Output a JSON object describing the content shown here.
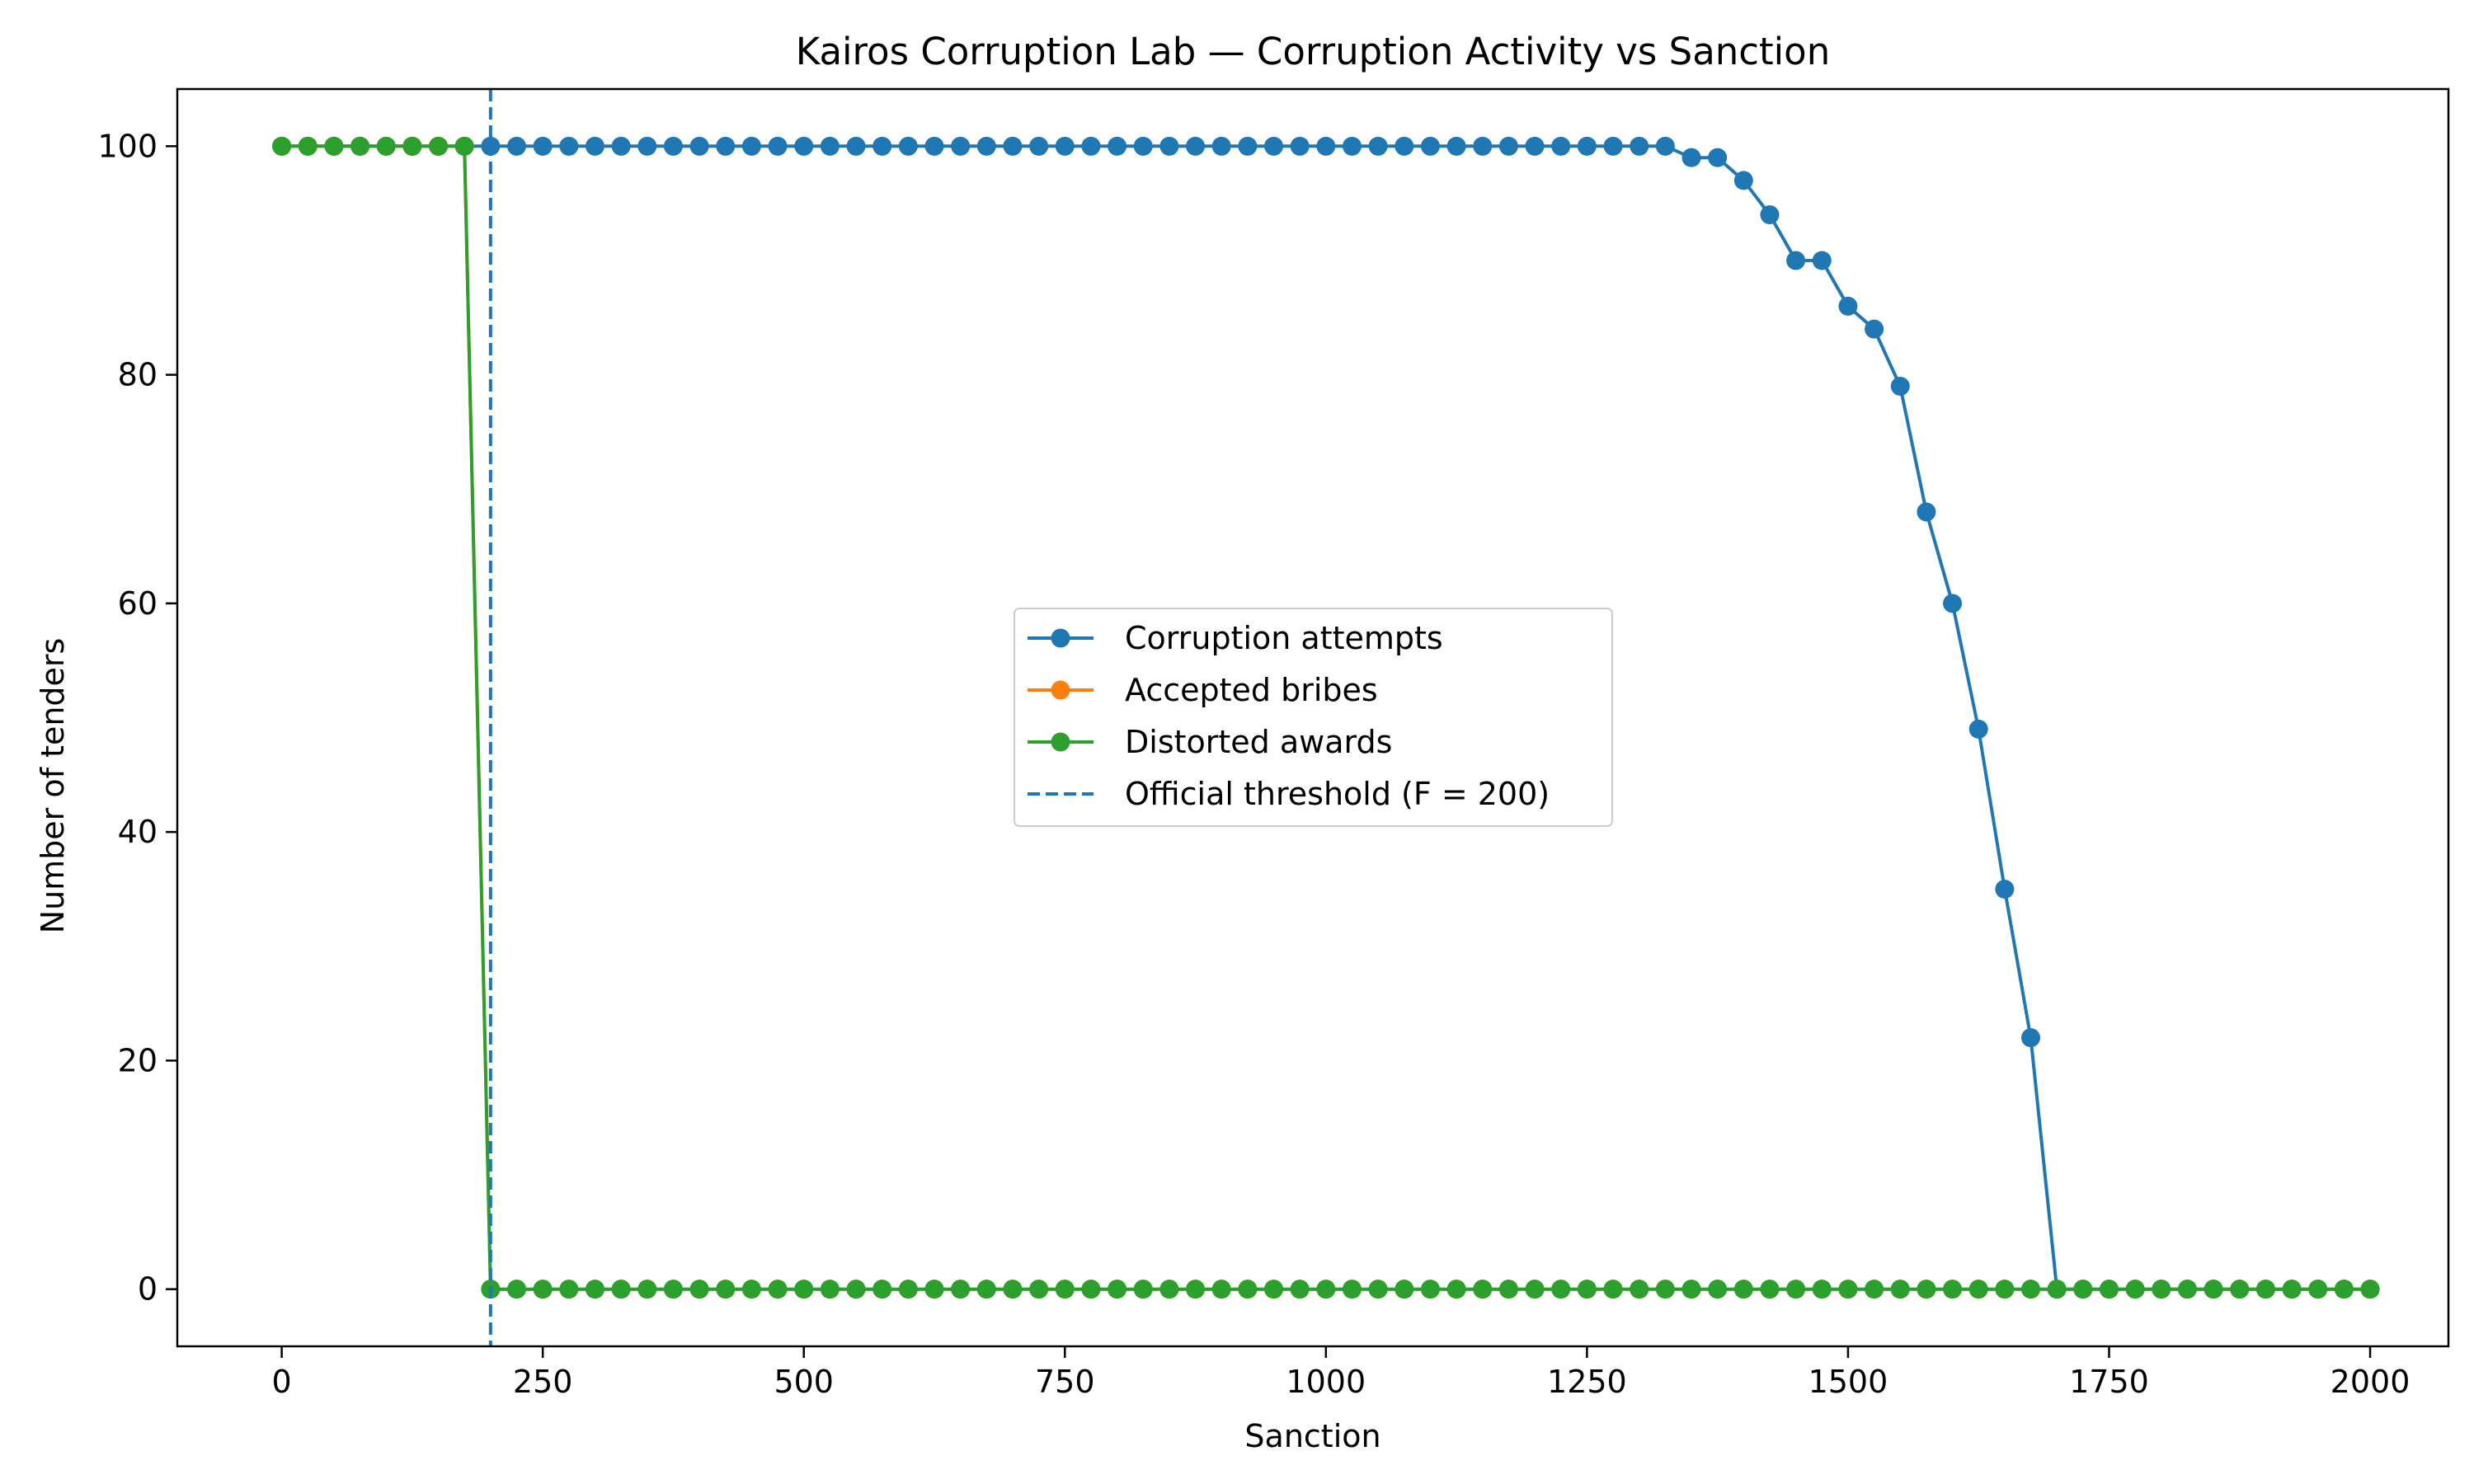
{
  "chart_data": {
    "type": "line",
    "title": "Kairos Corruption Lab — Corruption Activity vs Sanction",
    "xlabel": "Sanction",
    "ylabel": "Number of tenders",
    "xlim": [
      -100,
      2075
    ],
    "ylim": [
      -5,
      105
    ],
    "xticks": [
      0,
      250,
      500,
      750,
      1000,
      1250,
      1500,
      1750,
      2000
    ],
    "yticks": [
      0,
      20,
      40,
      60,
      80,
      100
    ],
    "grid": false,
    "legend_position": "center",
    "x": [
      0,
      25,
      50,
      75,
      100,
      125,
      150,
      175,
      200,
      225,
      250,
      275,
      300,
      325,
      350,
      375,
      400,
      425,
      450,
      475,
      500,
      525,
      550,
      575,
      600,
      625,
      650,
      675,
      700,
      725,
      750,
      775,
      800,
      825,
      850,
      875,
      900,
      925,
      950,
      975,
      1000,
      1025,
      1050,
      1075,
      1100,
      1125,
      1150,
      1175,
      1200,
      1225,
      1250,
      1275,
      1300,
      1325,
      1350,
      1375,
      1400,
      1425,
      1450,
      1475,
      1500,
      1525,
      1550,
      1575,
      1600,
      1625,
      1650,
      1675,
      1700,
      1725,
      1750,
      1775,
      1800,
      1825,
      1850,
      1875,
      1900,
      1925,
      1950,
      1975,
      2000
    ],
    "series": [
      {
        "name": "Corruption attempts",
        "color": "#1f77b4",
        "values": [
          100,
          100,
          100,
          100,
          100,
          100,
          100,
          100,
          100,
          100,
          100,
          100,
          100,
          100,
          100,
          100,
          100,
          100,
          100,
          100,
          100,
          100,
          100,
          100,
          100,
          100,
          100,
          100,
          100,
          100,
          100,
          100,
          100,
          100,
          100,
          100,
          100,
          100,
          100,
          100,
          100,
          100,
          100,
          100,
          100,
          100,
          100,
          100,
          100,
          100,
          100,
          100,
          100,
          100,
          99,
          99,
          97,
          94,
          90,
          90,
          86,
          84,
          79,
          68,
          60,
          49,
          35,
          22,
          0,
          0,
          0,
          0,
          0,
          0,
          0,
          0,
          0,
          0,
          0,
          0,
          0
        ]
      },
      {
        "name": "Accepted bribes",
        "color": "#ff7f0e",
        "values": [
          100,
          100,
          100,
          100,
          100,
          100,
          100,
          100,
          0,
          0,
          0,
          0,
          0,
          0,
          0,
          0,
          0,
          0,
          0,
          0,
          0,
          0,
          0,
          0,
          0,
          0,
          0,
          0,
          0,
          0,
          0,
          0,
          0,
          0,
          0,
          0,
          0,
          0,
          0,
          0,
          0,
          0,
          0,
          0,
          0,
          0,
          0,
          0,
          0,
          0,
          0,
          0,
          0,
          0,
          0,
          0,
          0,
          0,
          0,
          0,
          0,
          0,
          0,
          0,
          0,
          0,
          0,
          0,
          0,
          0,
          0,
          0,
          0,
          0,
          0,
          0,
          0,
          0,
          0,
          0,
          0
        ]
      },
      {
        "name": "Distorted awards",
        "color": "#2ca02c",
        "values": [
          100,
          100,
          100,
          100,
          100,
          100,
          100,
          100,
          0,
          0,
          0,
          0,
          0,
          0,
          0,
          0,
          0,
          0,
          0,
          0,
          0,
          0,
          0,
          0,
          0,
          0,
          0,
          0,
          0,
          0,
          0,
          0,
          0,
          0,
          0,
          0,
          0,
          0,
          0,
          0,
          0,
          0,
          0,
          0,
          0,
          0,
          0,
          0,
          0,
          0,
          0,
          0,
          0,
          0,
          0,
          0,
          0,
          0,
          0,
          0,
          0,
          0,
          0,
          0,
          0,
          0,
          0,
          0,
          0,
          0,
          0,
          0,
          0,
          0,
          0,
          0,
          0,
          0,
          0,
          0,
          0
        ]
      }
    ],
    "threshold": {
      "name": "Official threshold (F = 200)",
      "x": 200,
      "color": "#1f77b4",
      "style": "dashed"
    }
  }
}
